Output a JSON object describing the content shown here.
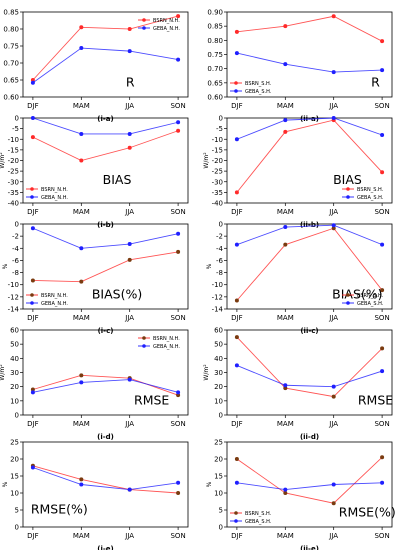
{
  "figure": {
    "categories": [
      "DJF",
      "MAM",
      "JJA",
      "SON"
    ],
    "colors": {
      "bsrn": "#ff2a2a",
      "geba": "#1f1fff",
      "brown_line": "#a0522d",
      "brown_marker": "#7a3b10"
    }
  },
  "chart_data": [
    {
      "id": "i-a",
      "type": "line",
      "title": "R",
      "caption": "(i-a)",
      "categories": [
        "DJF",
        "MAM",
        "JJA",
        "SON"
      ],
      "ylabel": "",
      "ylim": [
        0.6,
        0.85
      ],
      "yticks": [
        "0.60",
        "0.65",
        "0.70",
        "0.75",
        "0.80",
        "0.85"
      ],
      "legend": "top-right",
      "series": [
        {
          "name": "BSRN_N.H.",
          "values": [
            0.65,
            0.805,
            0.8,
            0.838
          ]
        },
        {
          "name": "GEBA_N.H.",
          "values": [
            0.642,
            0.744,
            0.735,
            0.71
          ]
        }
      ]
    },
    {
      "id": "ii-a",
      "type": "line",
      "title": "R",
      "caption": "(ii-a)",
      "categories": [
        "DJF",
        "MAM",
        "JJA",
        "SON"
      ],
      "ylabel": "",
      "ylim": [
        0.6,
        0.9
      ],
      "yticks": [
        "0.60",
        "0.65",
        "0.70",
        "0.75",
        "0.80",
        "0.85",
        "0.90"
      ],
      "legend": "bottom-left",
      "series": [
        {
          "name": "BSRN_S.H.",
          "values": [
            0.83,
            0.85,
            0.885,
            0.797
          ]
        },
        {
          "name": "GEBA_S.H.",
          "values": [
            0.755,
            0.716,
            0.688,
            0.695
          ]
        }
      ]
    },
    {
      "id": "i-b",
      "type": "line",
      "title": "BIAS",
      "caption": "(i-b)",
      "categories": [
        "DJF",
        "MAM",
        "JJA",
        "SON"
      ],
      "ylabel": "W/m²",
      "ylim": [
        -40,
        0
      ],
      "yticks": [
        "-40",
        "-35",
        "-30",
        "-25",
        "-20",
        "-15",
        "-10",
        "-5",
        "0"
      ],
      "legend": "bottom-left",
      "series": [
        {
          "name": "BSRN_N.H.",
          "values": [
            -9,
            -20,
            -14,
            -6
          ]
        },
        {
          "name": "GEBA_N.H.",
          "values": [
            0,
            -7.5,
            -7.5,
            -2
          ]
        }
      ]
    },
    {
      "id": "ii-b",
      "type": "line",
      "title": "BIAS",
      "caption": "(ii-b)",
      "categories": [
        "DJF",
        "MAM",
        "JJA",
        "SON"
      ],
      "ylabel": "W/m²",
      "ylim": [
        -40,
        0
      ],
      "yticks": [
        "-40",
        "-35",
        "-30",
        "-25",
        "-20",
        "-15",
        "-10",
        "-5",
        "0"
      ],
      "legend": "bottom-right",
      "series": [
        {
          "name": "BSRN_S.H.",
          "values": [
            -35,
            -6.5,
            -1,
            -25.5
          ]
        },
        {
          "name": "GEBA_S.H.",
          "values": [
            -10,
            -1,
            0,
            -8
          ]
        }
      ]
    },
    {
      "id": "i-c",
      "type": "line",
      "title": "BIAS(%)",
      "caption": "(i-c)",
      "categories": [
        "DJF",
        "MAM",
        "JJA",
        "SON"
      ],
      "ylabel": "%",
      "ylim": [
        -14,
        0
      ],
      "yticks": [
        "-14",
        "-12",
        "-10",
        "-8",
        "-6",
        "-4",
        "-2",
        "0"
      ],
      "legend": "bottom-left",
      "series": [
        {
          "name": "BSRN_N.H.",
          "values": [
            -9.3,
            -9.5,
            -5.9,
            -4.6
          ]
        },
        {
          "name": "GEBA_N.H.",
          "values": [
            -0.7,
            -4,
            -3.3,
            -1.6
          ]
        }
      ]
    },
    {
      "id": "ii-c",
      "type": "line",
      "title": "BIAS(%)",
      "caption": "(ii-c)",
      "categories": [
        "DJF",
        "MAM",
        "JJA",
        "SON"
      ],
      "ylabel": "%",
      "ylim": [
        -14,
        0
      ],
      "yticks": [
        "-14",
        "-12",
        "-10",
        "-8",
        "-6",
        "-4",
        "-2",
        "0"
      ],
      "legend": "bottom-right",
      "series": [
        {
          "name": "BSRN_S.H.",
          "values": [
            -12.6,
            -3.4,
            -0.7,
            -10.9
          ]
        },
        {
          "name": "GEBA_S.H.",
          "values": [
            -3.4,
            -0.5,
            -0.2,
            -3.4
          ]
        }
      ]
    },
    {
      "id": "i-d",
      "type": "line",
      "title": "RMSE",
      "caption": "(i-d)",
      "categories": [
        "DJF",
        "MAM",
        "JJA",
        "SON"
      ],
      "ylabel": "W/m²",
      "ylim": [
        0,
        60
      ],
      "yticks": [
        "0",
        "10",
        "20",
        "30",
        "40",
        "50",
        "60"
      ],
      "legend": "top-right",
      "series": [
        {
          "name": "BSRN_N.H.",
          "values": [
            18,
            28,
            26,
            14
          ]
        },
        {
          "name": "GEBA_N.H.",
          "values": [
            16,
            23,
            25,
            16
          ]
        }
      ]
    },
    {
      "id": "ii-d",
      "type": "line",
      "title": "RMSE",
      "caption": "(ii-d)",
      "categories": [
        "DJF",
        "MAM",
        "JJA",
        "SON"
      ],
      "ylabel": "W/m²",
      "ylim": [
        0,
        60
      ],
      "yticks": [
        "0",
        "10",
        "20",
        "30",
        "40",
        "50",
        "60"
      ],
      "legend": "none",
      "series": [
        {
          "name": "",
          "values": [
            55,
            19,
            13,
            47
          ]
        },
        {
          "name": "",
          "values": [
            35,
            21,
            20,
            31
          ]
        }
      ]
    },
    {
      "id": "i-e",
      "type": "line",
      "title": "RMSE(%)",
      "caption": "(i-e)",
      "categories": [
        "DJF",
        "MAM",
        "JJA",
        "SON"
      ],
      "ylabel": "%",
      "ylim": [
        0,
        25
      ],
      "yticks": [
        "0",
        "5",
        "10",
        "15",
        "20",
        "25"
      ],
      "legend": "none",
      "series": [
        {
          "name": "",
          "values": [
            18,
            14,
            11,
            10
          ]
        },
        {
          "name": "",
          "values": [
            17.5,
            12.5,
            11,
            13
          ]
        }
      ]
    },
    {
      "id": "ii-e",
      "type": "line",
      "title": "RMSE(%)",
      "caption": "(ii-e)",
      "categories": [
        "DJF",
        "MAM",
        "JJA",
        "SON"
      ],
      "ylabel": "%",
      "ylim": [
        0,
        25
      ],
      "yticks": [
        "0",
        "5",
        "10",
        "15",
        "20",
        "25"
      ],
      "legend": "bottom-left",
      "series": [
        {
          "name": "BSRN_S.H.",
          "values": [
            20,
            10,
            7,
            20.5
          ]
        },
        {
          "name": "GEBA_S.H.",
          "values": [
            13,
            11,
            12.5,
            13
          ]
        }
      ]
    }
  ]
}
